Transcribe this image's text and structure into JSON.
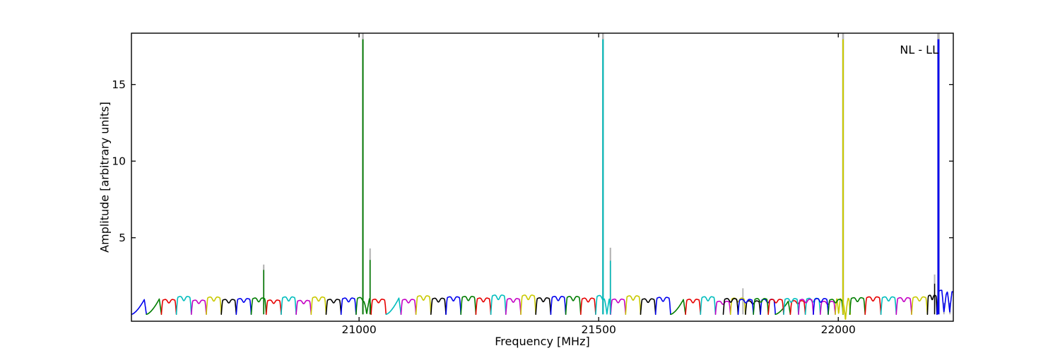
{
  "chart_data": {
    "type": "line",
    "title": "",
    "annotation": "NL - LL",
    "xlabel": "Frequency [MHz]",
    "ylabel": "Amplitude [arbitrary units]",
    "xlim": [
      20525,
      22240
    ],
    "ylim": [
      -0.45,
      18.35
    ],
    "xticks": [
      {
        "value": 21000,
        "label": "21000"
      },
      {
        "value": 21500,
        "label": "21500"
      },
      {
        "value": 22000,
        "label": "22000"
      }
    ],
    "yticks": [
      {
        "value": 5,
        "label": "5"
      },
      {
        "value": 10,
        "label": "10"
      },
      {
        "value": 15,
        "label": "15"
      }
    ],
    "grid": false,
    "legend_position": "none",
    "palette": {
      "b": "#0000ee",
      "g": "#007d00",
      "r": "#e60000",
      "c": "#00bdbd",
      "m": "#c400c4",
      "y": "#c9c900",
      "k": "#000000",
      "gray": "#b3b3b3"
    },
    "subband_plan": {
      "start": 20525,
      "width": 31.25,
      "count": 48,
      "color_cycle": [
        "b",
        "g",
        "r",
        "c",
        "m",
        "y",
        "k"
      ],
      "fin_indices": [
        0,
        1,
        17,
        36,
        43
      ],
      "overlap_start_index": 39,
      "dips": {
        "15": [
          [
            21011.5,
            21020.5
          ]
        ],
        "31": [
          [
            21513.0,
            21521.5
          ]
        ],
        "47": [
          [
            21998.5,
            22003.0
          ],
          [
            22011.0,
            22019.0
          ]
        ]
      },
      "negative_dips": {
        "47": [
          22011.0,
          22019.0,
          -0.42
        ]
      }
    },
    "overlay_subbands": [
      {
        "s": 21760,
        "e": 21791,
        "c": "k",
        "h": 0.95
      },
      {
        "s": 21791,
        "e": 21823,
        "c": "b",
        "h": 0.9
      },
      {
        "s": 21823,
        "e": 21854,
        "c": "g",
        "h": 0.95
      },
      {
        "s": 21854,
        "e": 21886,
        "c": "r",
        "h": 0.9
      },
      {
        "s": 21886,
        "e": 21917,
        "c": "c",
        "h": 0.95
      },
      {
        "s": 21917,
        "e": 21948,
        "c": "m",
        "h": 0.9
      },
      {
        "s": 21948,
        "e": 21979,
        "c": "b",
        "h": 0.95
      },
      {
        "s": 21979,
        "e": 22010,
        "c": "g",
        "h": 0.9
      }
    ],
    "tail_subbands": [
      {
        "s": 22024,
        "e": 22056,
        "c": "g",
        "h": 1.0
      },
      {
        "s": 22056,
        "e": 22089,
        "c": "r",
        "h": 1.05
      },
      {
        "s": 22089,
        "e": 22121,
        "c": "c",
        "h": 1.05
      },
      {
        "s": 22121,
        "e": 22153,
        "c": "m",
        "h": 1.0
      },
      {
        "s": 22153,
        "e": 22186,
        "c": "y",
        "h": 1.05
      },
      {
        "s": 22186,
        "e": 22206,
        "c": "k",
        "h": 1.15
      },
      {
        "s": 22206,
        "e": 22240,
        "c": "b",
        "h": 1.45,
        "clipend": true,
        "dips": [
          [
            22217.5,
            22223.5,
            0.08
          ],
          [
            22229.0,
            22236.0,
            0.08
          ]
        ]
      }
    ],
    "spikes": [
      {
        "freq": 20801,
        "height": 2.9,
        "color": "g",
        "gray": 3.25,
        "width": 1.5
      },
      {
        "freq": 21008,
        "height": 17.95,
        "color": "g",
        "gray": 18.6,
        "width": 1.8
      },
      {
        "freq": 21023,
        "height": 3.55,
        "color": "g",
        "gray": 4.3,
        "width": 1.5
      },
      {
        "freq": 21509,
        "height": 17.95,
        "color": "c",
        "gray": 18.6,
        "width": 2.0
      },
      {
        "freq": 21524.5,
        "height": 3.5,
        "color": "c",
        "gray": 4.35,
        "width": 1.5
      },
      {
        "freq": 21801,
        "height": 0,
        "color": null,
        "gray": 1.7,
        "width": 1.3
      },
      {
        "freq": 22010,
        "height": 17.95,
        "color": "y",
        "gray": 18.6,
        "width": 2.0
      },
      {
        "freq": 22201,
        "height": 2.0,
        "color": "k",
        "gray": 2.6,
        "width": 1.4
      },
      {
        "freq": 22209,
        "height": 17.95,
        "color": "b",
        "gray": 18.6,
        "width": 2.8
      },
      {
        "freq": 22220.5,
        "height": 0,
        "color": null,
        "gray": 0.75,
        "width": 1.2
      },
      {
        "freq": 22233,
        "height": 0,
        "color": null,
        "gray": 0.75,
        "width": 1.2
      }
    ]
  }
}
